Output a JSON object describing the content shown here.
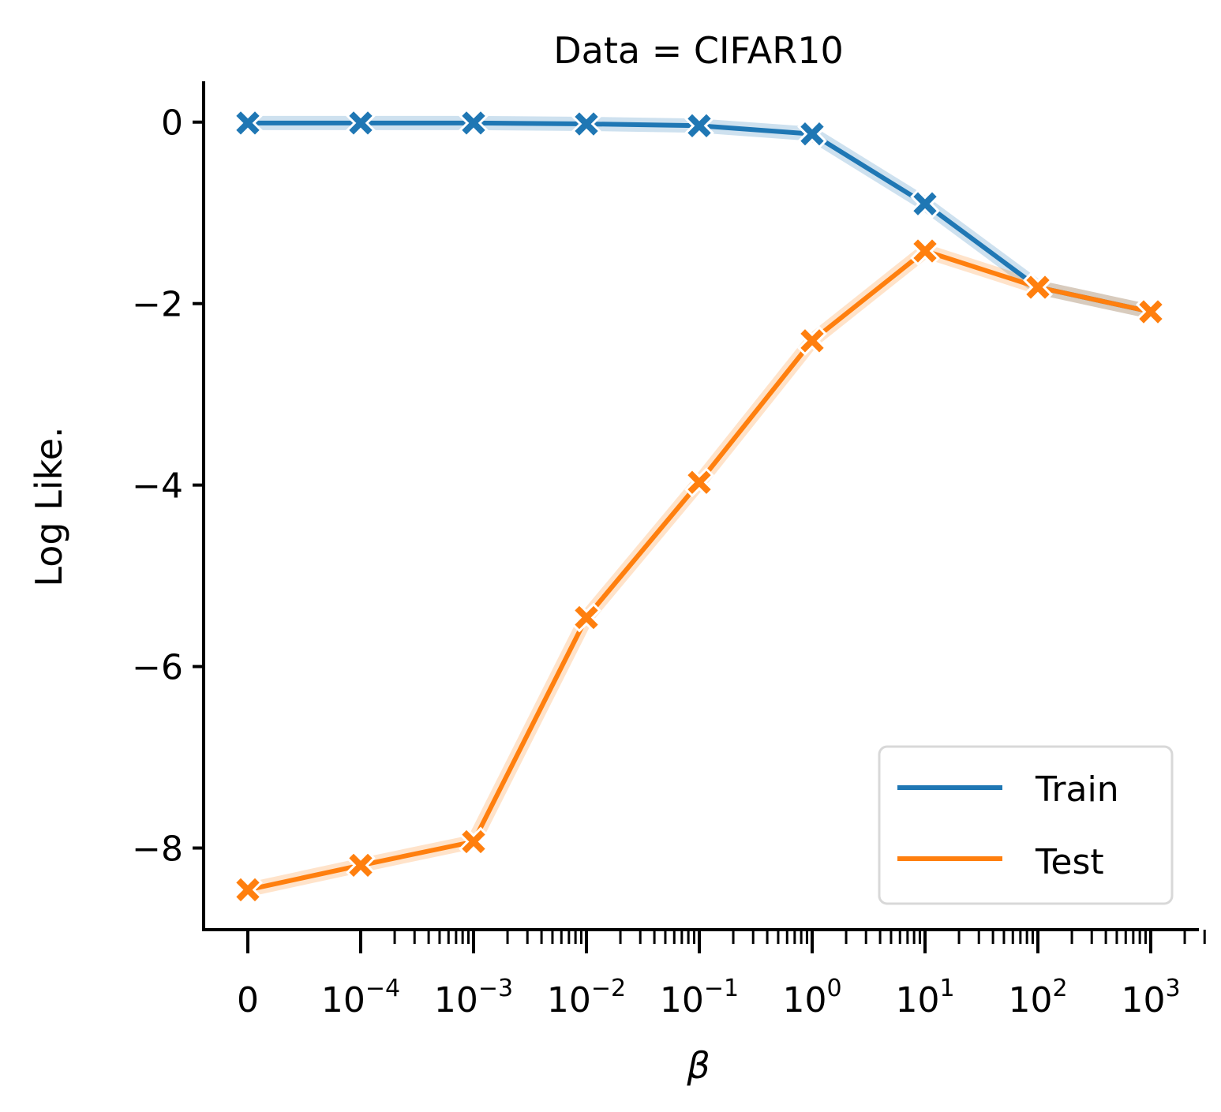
{
  "chart_data": {
    "type": "line",
    "title": "Data = CIFAR10",
    "xlabel": "β",
    "ylabel": "Log Like.",
    "x_scale": "symlog",
    "x": [
      0,
      0.0001,
      0.001,
      0.01,
      0.1,
      1,
      10,
      100,
      1000
    ],
    "x_tick_labels": [
      {
        "base": "0",
        "exp": ""
      },
      {
        "base": "10",
        "exp": "−4"
      },
      {
        "base": "10",
        "exp": "−3"
      },
      {
        "base": "10",
        "exp": "−2"
      },
      {
        "base": "10",
        "exp": "−1"
      },
      {
        "base": "10",
        "exp": "0"
      },
      {
        "base": "10",
        "exp": "1"
      },
      {
        "base": "10",
        "exp": "2"
      },
      {
        "base": "10",
        "exp": "3"
      }
    ],
    "y_ticks": [
      0,
      -2,
      -4,
      -6,
      -8
    ],
    "y_tick_labels": [
      "0",
      "−2",
      "−4",
      "−6",
      "−8"
    ],
    "ylim": [
      -8.9,
      0.45
    ],
    "grid": false,
    "legend_position": "bottom-right",
    "series": [
      {
        "name": "Train",
        "color": "#1f77b4",
        "marker": "x",
        "values": [
          -0.01,
          -0.01,
          -0.01,
          -0.02,
          -0.04,
          -0.13,
          -0.9,
          -1.82,
          -2.09
        ]
      },
      {
        "name": "Test",
        "color": "#ff7f0e",
        "marker": "x",
        "values": [
          -8.46,
          -8.19,
          -7.93,
          -5.46,
          -3.97,
          -2.41,
          -1.42,
          -1.82,
          -2.09
        ]
      }
    ]
  }
}
